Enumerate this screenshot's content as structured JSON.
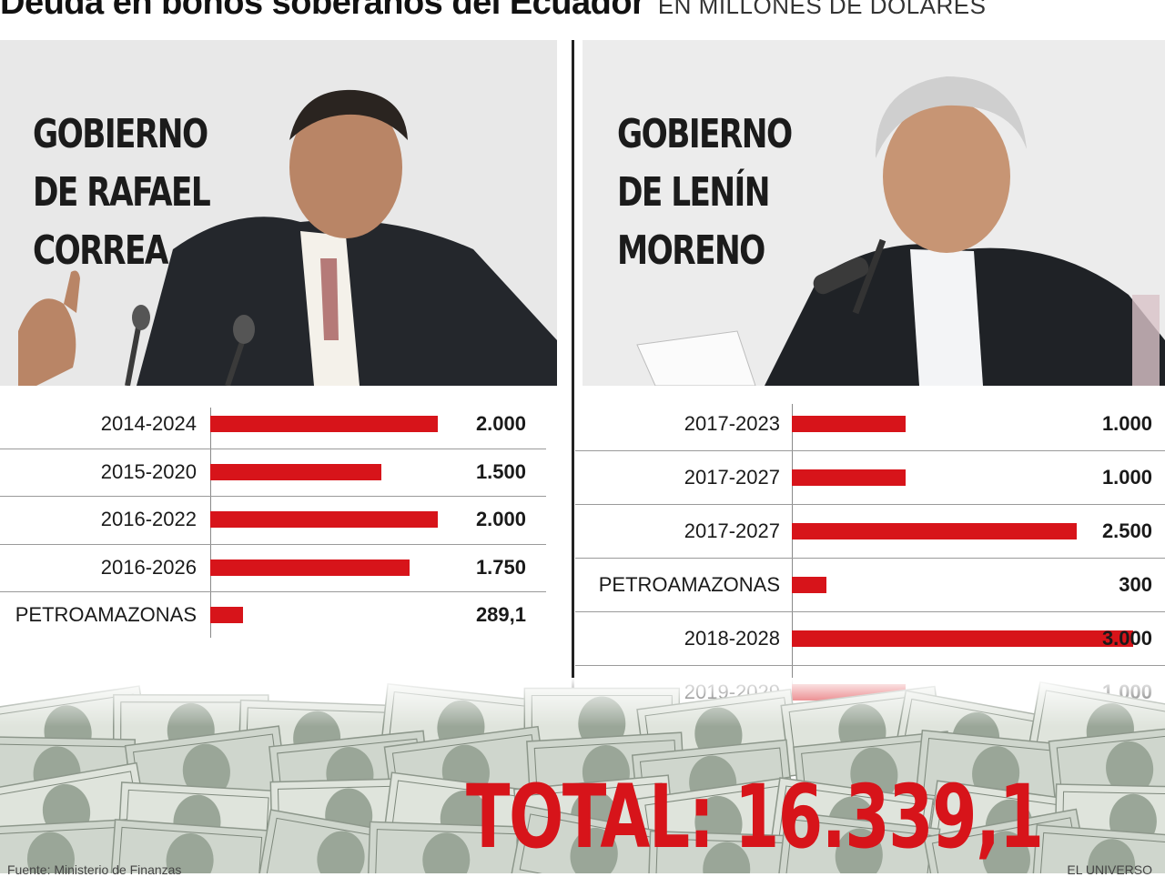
{
  "header": {
    "title": "Deuda en bonos soberanos del Ecuador",
    "subtitle": "EN MILLONES DE DÓLARES"
  },
  "panels": {
    "left": {
      "title_lines": [
        "GOBIERNO",
        "DE RAFAEL",
        "CORREA"
      ]
    },
    "right": {
      "title_lines": [
        "GOBIERNO",
        "DE LENÍN",
        "MORENO"
      ]
    }
  },
  "chart_data": [
    {
      "type": "bar",
      "orientation": "horizontal",
      "title": "GOBIERNO DE RAFAEL CORREA",
      "categories": [
        "2014-2024",
        "2015-2020",
        "2016-2022",
        "2016-2026",
        "PETROAMAZONAS"
      ],
      "values": [
        2000,
        1500,
        2000,
        1750,
        289.1
      ],
      "value_labels": [
        "2.000",
        "1.500",
        "2.000",
        "1.750",
        "289,1"
      ],
      "bar_color": "#d7141a",
      "xlim": [
        0,
        2000
      ],
      "grid": false
    },
    {
      "type": "bar",
      "orientation": "horizontal",
      "title": "GOBIERNO DE LENÍN MORENO",
      "categories": [
        "2017-2023",
        "2017-2027",
        "2017-2027",
        "PETROAMAZONAS",
        "2018-2028",
        "2019-2029"
      ],
      "values": [
        1000,
        1000,
        2500,
        300,
        3000,
        1000
      ],
      "value_labels": [
        "1.000",
        "1.000",
        "2.500",
        "300",
        "3.000",
        "1.000"
      ],
      "bar_color": "#d7141a",
      "xlim": [
        0,
        3000
      ],
      "grid": false
    }
  ],
  "total": {
    "text": "TOTAL: 16.339,1"
  },
  "footer": {
    "source": "Fuente: Ministerio de Finanzas",
    "credit": "EL UNIVERSO"
  },
  "colors": {
    "accent": "#d7141a",
    "text": "#1a1a1a"
  }
}
